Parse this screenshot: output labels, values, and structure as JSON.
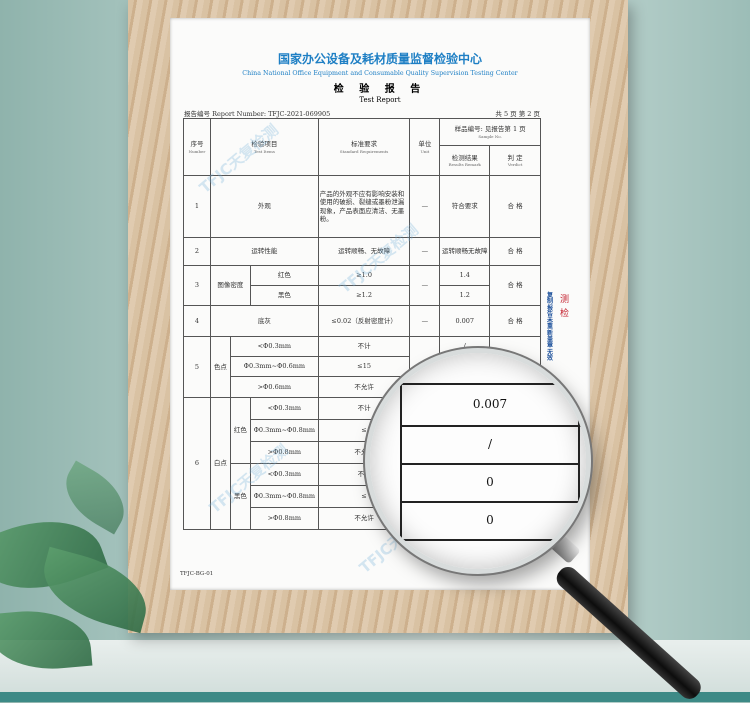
{
  "header": {
    "org_cn": "国家办公设备及耗材质量监督检验中心",
    "org_en": "China National Office Equipment and Consumable Quality Supervision Testing Center",
    "title_cn": "检 验 报 告",
    "title_en": "Test Report",
    "report_number": "报告编号 Report Number: TFJC-2021-069905",
    "pages": "共 5 页    第 2 页"
  },
  "table_header": {
    "no": "序号",
    "no_en": "Number",
    "item": "检验项目",
    "item_en": "Test Items",
    "std": "标准要求",
    "std_en": "Standard Requirements",
    "unit": "单位",
    "unit_en": "Unit",
    "sample": "样品编号: 见报告第 1 页",
    "sample_en": "Sample No.",
    "result": "检测结果",
    "result_en": "Results Remark",
    "verdict": "判 定",
    "verdict_en": "Verdict"
  },
  "rows": {
    "r1": {
      "no": "1",
      "item": "外观",
      "std": "产品的外观不应有影响安装和使用的破损、裂缝或墨粉泄漏现象，产品表面应清洁、无墨粉。",
      "unit": "—",
      "result": "符合要求",
      "verdict": "合 格"
    },
    "r2": {
      "no": "2",
      "item": "运转性能",
      "std": "运转顺畅、无故障",
      "unit": "—",
      "result": "运转顺畅无故障",
      "verdict": "合 格"
    },
    "r3": {
      "no": "3",
      "item": "图像密度",
      "a": "红色",
      "a_std": "≥1.0",
      "a_res": "1.4",
      "b": "黑色",
      "b_std": "≥1.2",
      "b_res": "1.2",
      "unit": "—",
      "verdict": "合 格"
    },
    "r4": {
      "no": "4",
      "item": "底灰",
      "std": "≤0.02（反射密度计）",
      "unit": "—",
      "result": "0.007",
      "verdict": "合 格"
    },
    "r5": {
      "no": "5",
      "item": "色点",
      "s": [
        "<Φ0.3mm",
        "Φ0.3mm~Φ0.6mm",
        ">Φ0.6mm"
      ],
      "std": [
        "不计",
        "≤15",
        "不允许"
      ],
      "res": [
        "/",
        "0",
        "0"
      ]
    },
    "r6": {
      "no": "6",
      "item": "白点",
      "red": "红色",
      "black": "黑色",
      "s": [
        "<Φ0.3mm",
        "Φ0.3mm~Φ0.8mm",
        ">Φ0.8mm",
        "<Φ0.3mm",
        "Φ0.3mm~Φ0.8mm",
        ">Φ0.8mm"
      ],
      "std": [
        "不计",
        "≤",
        "不允许",
        "不计",
        "≤",
        "不允许"
      ]
    }
  },
  "footer": "TFJC-BG-01",
  "side_note": "复制报告未重新盖章无效",
  "stamp": "测 检",
  "watermark": "TFJC天复检测",
  "magnifier": {
    "r1": "0.007",
    "v1": "合 格",
    "r2": "/",
    "r3": "0",
    "v2": "合 格",
    "r4": "0"
  }
}
